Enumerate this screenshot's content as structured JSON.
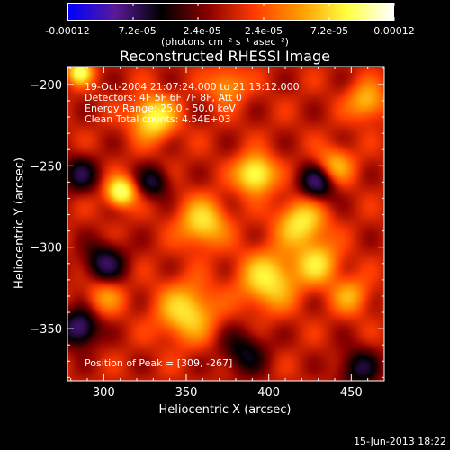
{
  "colorbar": {
    "ticks": [
      "-0.00012",
      "−7.2e-05",
      "−2.4e-05",
      "2.4e-05",
      "7.2e-05",
      "0.00012"
    ],
    "units": "(photons cm⁻² s⁻¹ asec⁻²)",
    "range": [
      -0.00012,
      0.00012
    ],
    "colors": [
      "#0000ff",
      "#5a1a9a",
      "#000000",
      "#8a0000",
      "#ff3b00",
      "#ff9a00",
      "#ffff40",
      "#ffffff"
    ]
  },
  "title": "Reconstructed RHESSI Image",
  "annotations": {
    "time": "19-Oct-2004 21:07:24.000 to 21:13:12.000",
    "detectors": "Detectors: 4F 5F 6F 7F 8F, Att 0",
    "energy": "Energy Range: 25.0 - 50.0 keV",
    "clean": "Clean    Total counts: 4.54E+03",
    "peak": "Position of Peak = [309, -267]"
  },
  "chart_data": {
    "type": "heatmap",
    "title": "Reconstructed RHESSI Image",
    "xlabel": "Heliocentric X (arcsec)",
    "ylabel": "Heliocentric Y (arcsec)",
    "xlim": [
      278,
      470
    ],
    "ylim": [
      -382,
      -189
    ],
    "xticks": [
      300,
      350,
      400,
      450
    ],
    "yticks": [
      -200,
      -250,
      -300,
      -350
    ],
    "peak": [
      309,
      -267
    ],
    "blobs": [
      {
        "x": 310,
        "y": -266,
        "v": 1.0,
        "s": 6
      },
      {
        "x": 392,
        "y": -255,
        "v": 0.95,
        "s": 8
      },
      {
        "x": 285,
        "y": -192,
        "v": 0.9,
        "s": 5
      },
      {
        "x": 330,
        "y": -220,
        "v": 0.85,
        "s": 9
      },
      {
        "x": 360,
        "y": -285,
        "v": 0.7,
        "s": 10
      },
      {
        "x": 420,
        "y": -285,
        "v": 0.75,
        "s": 10
      },
      {
        "x": 440,
        "y": -250,
        "v": 0.55,
        "s": 8
      },
      {
        "x": 350,
        "y": -340,
        "v": 0.7,
        "s": 12
      },
      {
        "x": 400,
        "y": -320,
        "v": 0.75,
        "s": 12
      },
      {
        "x": 430,
        "y": -310,
        "v": 0.65,
        "s": 9
      },
      {
        "x": 460,
        "y": -210,
        "v": 0.55,
        "s": 8
      },
      {
        "x": 450,
        "y": -330,
        "v": 0.45,
        "s": 8
      },
      {
        "x": 300,
        "y": -330,
        "v": 0.4,
        "s": 8
      },
      {
        "x": 375,
        "y": -200,
        "v": 0.45,
        "s": 8
      },
      {
        "x": 300,
        "y": -310,
        "v": -0.6,
        "s": 9
      },
      {
        "x": 285,
        "y": -350,
        "v": -0.75,
        "s": 8
      },
      {
        "x": 285,
        "y": -255,
        "v": -0.5,
        "s": 8
      },
      {
        "x": 430,
        "y": -260,
        "v": -0.7,
        "s": 8
      },
      {
        "x": 330,
        "y": -260,
        "v": -0.5,
        "s": 7
      },
      {
        "x": 455,
        "y": -375,
        "v": -0.5,
        "s": 9
      },
      {
        "x": 385,
        "y": -365,
        "v": -0.45,
        "s": 10
      }
    ]
  },
  "timestamp": "15-Jun-2013 18:22"
}
